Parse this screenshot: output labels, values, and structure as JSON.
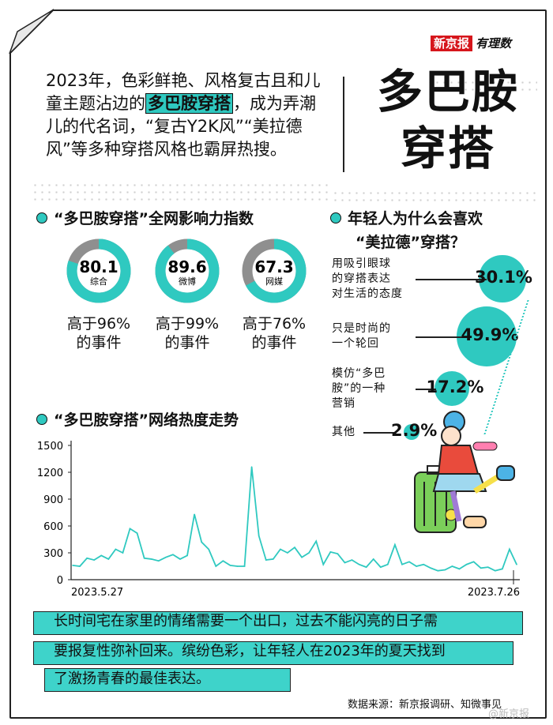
{
  "brand": {
    "logo_red": "新京报",
    "logo_hand": "有理数"
  },
  "intro": {
    "part1": "2023年，色彩鲜艳、风格复古且和儿童主题沾边的",
    "highlight": "多巴胺穿搭",
    "part2": "，成为弄潮儿的代名词，“复古Y2K风”“美拉德风”等多种穿搭风格也霸屏热搜。"
  },
  "title": {
    "line1": "多巴胺",
    "line2": "穿搭"
  },
  "influence": {
    "heading": "“多巴胺穿搭”全网影响力指数",
    "gauges": [
      {
        "value": "80.1",
        "label": "综合",
        "line1": "高于96%",
        "line2": "的事件",
        "fill": 0.801
      },
      {
        "value": "89.6",
        "label": "微博",
        "line1": "高于99%",
        "line2": "的事件",
        "fill": 0.896
      },
      {
        "value": "67.3",
        "label": "网媒",
        "line1": "高于76%",
        "line2": "的事件",
        "fill": 0.673
      }
    ]
  },
  "reasons": {
    "heading1": "年轻人为什么会喜欢",
    "heading2": "“美拉德”穿搭？",
    "items": [
      {
        "l1": "用吸引眼球",
        "l2": "的穿搭表达",
        "l3": "对生活的态度",
        "value": "30.1%",
        "share": 30.1
      },
      {
        "l1": "只是时尚的",
        "l2": "一个轮回",
        "l3": "",
        "value": "49.9%",
        "share": 49.9
      },
      {
        "l1": "模仿“多巴",
        "l2": "胺”的一种",
        "l3": "营销",
        "value": "17.2%",
        "share": 17.2
      },
      {
        "l1": "其他",
        "l2": "",
        "l3": "",
        "value": "2.9%",
        "share": 2.9
      }
    ]
  },
  "trend": {
    "heading": "“多巴胺穿搭”网络热度走势"
  },
  "chart_data": {
    "type": "line",
    "title": "“多巴胺穿搭”网络热度走势",
    "xlabel": "",
    "ylabel": "",
    "ylim": [
      0,
      1500
    ],
    "yticks": [
      "0",
      "300",
      "600",
      "900",
      "1200",
      "1500"
    ],
    "x_start_label": "2023.5.27",
    "x_end_label": "2023.7.26",
    "series": [
      {
        "color": "#2fc9c0",
        "values": [
          160,
          150,
          240,
          220,
          270,
          230,
          340,
          300,
          570,
          520,
          240,
          230,
          210,
          250,
          280,
          230,
          270,
          730,
          420,
          340,
          150,
          210,
          160,
          150,
          150,
          1260,
          490,
          220,
          230,
          340,
          300,
          360,
          250,
          300,
          430,
          170,
          310,
          290,
          190,
          220,
          170,
          140,
          230,
          140,
          170,
          390,
          170,
          200,
          150,
          170,
          130,
          100,
          110,
          150,
          120,
          170,
          200,
          130,
          140,
          100,
          120,
          340,
          170
        ]
      }
    ],
    "grid": false
  },
  "summary": {
    "line1": "长时间宅在家里的情绪需要一个出口，过去不能闪亮的日子需",
    "line2": "要报复性弥补回来。缤纷色彩，让年轻人在2023年的夏天找到",
    "line3": "了激扬青春的最佳表达。"
  },
  "source": "数据来源：新京报调研、知微事见",
  "watermark": "@新京报",
  "colors": {
    "accent": "#2fc9c0",
    "ring_bg": "#8f8f8f",
    "brand_red": "#d6161c"
  }
}
